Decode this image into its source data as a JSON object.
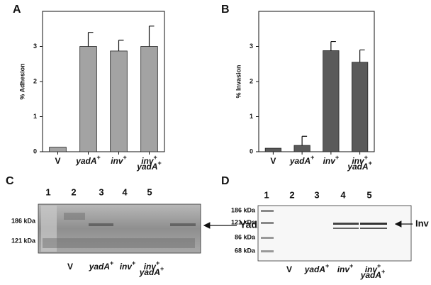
{
  "chart_data": [
    {
      "type": "bar",
      "panel": "A",
      "y_label": "% Adhesion",
      "categories": [
        "V",
        "yadA+",
        "inv+",
        "inv+ yadA+"
      ],
      "values": [
        0.13,
        3.0,
        2.87,
        3.0
      ],
      "errors": [
        null,
        0.4,
        0.31,
        0.58
      ],
      "color": "#a3a3a3",
      "ylim": [
        0,
        4
      ],
      "yticks": [
        0,
        1,
        2,
        3
      ]
    },
    {
      "type": "bar",
      "panel": "B",
      "y_label": "% Invasion",
      "categories": [
        "V",
        "yadA+",
        "inv+",
        "inv+ yadA+"
      ],
      "values": [
        0.1,
        0.18,
        2.88,
        2.55
      ],
      "errors": [
        null,
        0.26,
        0.26,
        0.35
      ],
      "color": "#5a5a5a",
      "ylim": [
        0,
        4
      ],
      "yticks": [
        0,
        1,
        2,
        3
      ]
    }
  ],
  "gels": [
    {
      "panel": "C",
      "lanes": [
        "1",
        "2",
        "3",
        "4",
        "5"
      ],
      "markers": [
        "186 kDa",
        "121 kDa"
      ],
      "band_label": "YadA",
      "lane_labels": [
        "V",
        "yadA+",
        "inv+",
        "inv+ yadA+"
      ]
    },
    {
      "panel": "D",
      "lanes": [
        "1",
        "2",
        "3",
        "4",
        "5"
      ],
      "markers": [
        "186 kDa",
        "121 kDa",
        "86 kDa",
        "68 kDa"
      ],
      "band_label": "Inv",
      "lane_labels": [
        "V",
        "yadA+",
        "inv+",
        "inv+ yadA+"
      ]
    }
  ]
}
